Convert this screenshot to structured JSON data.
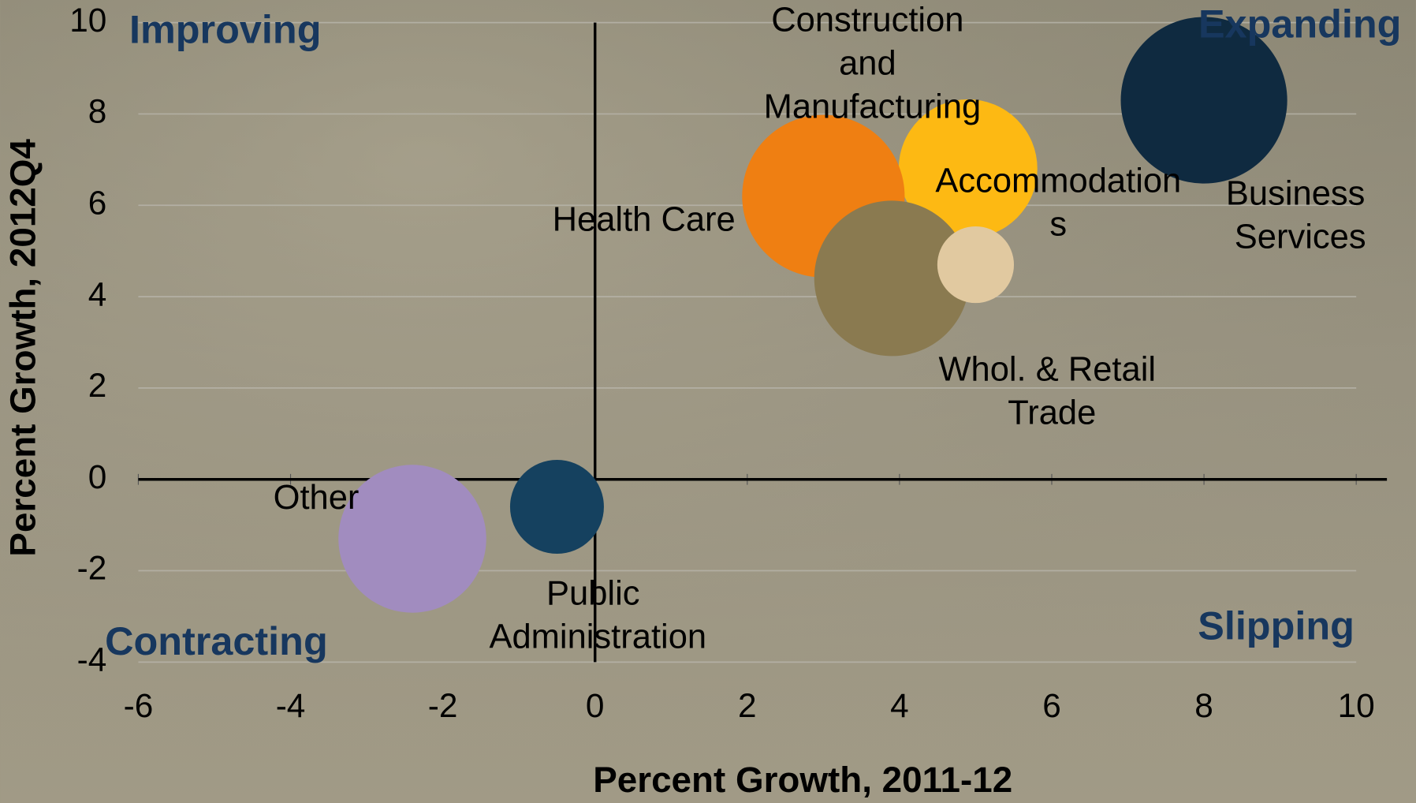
{
  "chart_data": {
    "type": "bubble",
    "x_label": "Percent Growth, 2011-12",
    "y_label": "Percent Growth, 2012Q4",
    "annotations": [
      "Improving",
      "Expanding",
      "Contracting",
      "Slipping"
    ],
    "xlim": [
      -6,
      10
    ],
    "xticks": [
      -6,
      -4,
      -2,
      0,
      2,
      4,
      6,
      8,
      10
    ],
    "ylim": [
      -4,
      10
    ],
    "yticks": [
      -4,
      -2,
      0,
      2,
      4,
      6,
      8,
      10
    ],
    "grid": true,
    "series": [
      {
        "name": "Business Services",
        "color": "#0f2a40",
        "x": 8.0,
        "y": 8.3,
        "size": 85
      },
      {
        "name": "Construction and Manufacturing",
        "color": "#fdb913",
        "x": 4.9,
        "y": 6.8,
        "size": 59
      },
      {
        "name": "Health Care",
        "color": "#ef7f12",
        "x": 3.0,
        "y": 6.2,
        "size": 81
      },
      {
        "name": "Whol. & Retail Trade",
        "color": "#8a7a50",
        "x": 3.9,
        "y": 4.4,
        "size": 74
      },
      {
        "name": "Accommodations",
        "color": "#e1c9a0",
        "x": 5.0,
        "y": 4.7,
        "size": 18
      },
      {
        "name": "Other",
        "color": "#a18cbf",
        "x": -2.4,
        "y": -1.3,
        "size": 67
      },
      {
        "name": "Public Administration",
        "color": "#15415f",
        "x": -0.5,
        "y": -0.6,
        "size": 27
      }
    ]
  }
}
